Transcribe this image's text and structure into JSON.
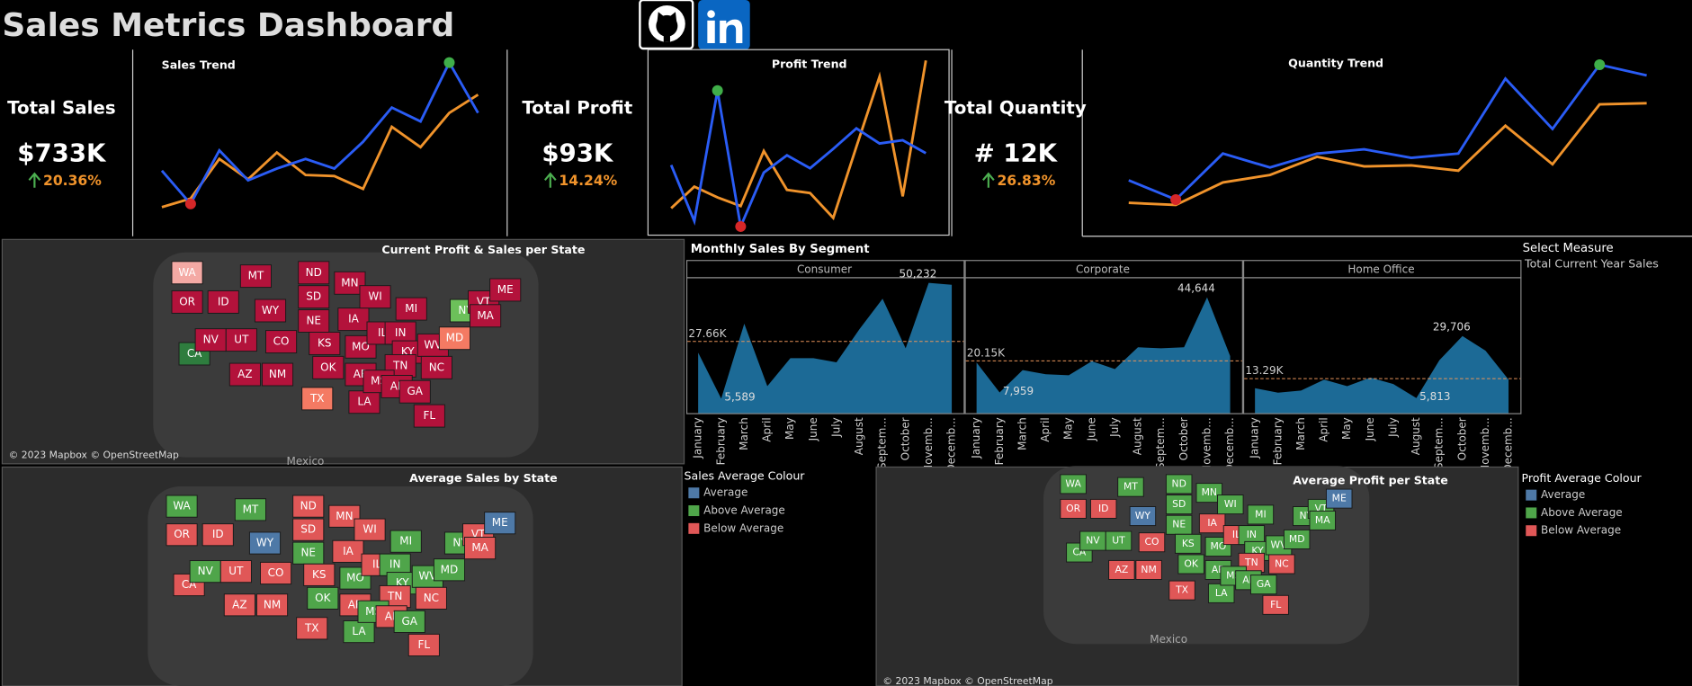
{
  "header": {
    "title": "Sales Metrics Dashboard"
  },
  "kpis": [
    {
      "label": "Total Sales",
      "value": "$733K",
      "change": "20.36%"
    },
    {
      "label": "Total Profit",
      "value": "$93K",
      "change": "14.24%"
    },
    {
      "label": "Total Quantity",
      "value": "# 12K",
      "change": "26.83%"
    }
  ],
  "chart_data": [
    {
      "type": "line",
      "title": "Sales Trend",
      "series": [
        {
          "color": "#2a5cf5",
          "values": [
            51,
            20,
            70,
            42,
            53,
            62,
            53,
            78,
            110,
            97,
            152,
            105
          ]
        },
        {
          "color": "#f0932b",
          "values": [
            17,
            25,
            62,
            43,
            68,
            47,
            46,
            34,
            92,
            73,
            105,
            122
          ]
        }
      ]
    },
    {
      "type": "line",
      "title": "Profit Trend",
      "series": [
        {
          "color": "#2a5cf5",
          "values": [
            6.7,
            1.5,
            13.6,
            1.0,
            6.0,
            7.6,
            6.4,
            8.2,
            10.1,
            8.7,
            9.0,
            7.8
          ]
        },
        {
          "color": "#f0932b",
          "values": [
            2.7,
            4.7,
            3.7,
            2.9,
            8.0,
            4.4,
            4.1,
            1.8,
            8.4,
            14.9,
            3.8,
            16.4
          ]
        }
      ]
    },
    {
      "type": "line",
      "title": "Quantity Trend",
      "series": [
        {
          "color": "#2a5cf5",
          "values": [
            1040,
            680,
            1540,
            1280,
            1540,
            1620,
            1460,
            1540,
            2940,
            2000,
            3200,
            3000
          ]
        },
        {
          "color": "#f0932b",
          "values": [
            620,
            580,
            1000,
            1140,
            1480,
            1300,
            1320,
            1220,
            2060,
            1340,
            2460,
            2480
          ]
        }
      ]
    },
    {
      "type": "area",
      "title": "Monthly Sales By Segment",
      "categories": [
        "January",
        "February",
        "March",
        "April",
        "May",
        "June",
        "July",
        "August",
        "Septem...",
        "October",
        "Novemb...",
        "Decemb..."
      ],
      "ylim": [
        0,
        52000
      ],
      "series": [
        {
          "name": "Consumer",
          "color": "#1c6a96",
          "values": [
            23300,
            5589,
            34500,
            10400,
            21200,
            21200,
            19600,
            32400,
            44100,
            25000,
            50232,
            49500
          ],
          "value_labels": [
            null,
            "5,589",
            null,
            null,
            null,
            null,
            null,
            null,
            null,
            null,
            "50,232",
            null
          ],
          "average": 27660,
          "average_label": "27.66K"
        },
        {
          "name": "Corporate",
          "color": "#1c6a96",
          "values": [
            19500,
            7959,
            16600,
            15000,
            14600,
            20000,
            17000,
            25400,
            25000,
            25400,
            44644,
            22000
          ],
          "value_labels": [
            null,
            "7,959",
            null,
            null,
            null,
            null,
            null,
            null,
            null,
            null,
            "44,644",
            null
          ],
          "average": 20150,
          "average_label": "20.15K"
        },
        {
          "name": "Home Office",
          "color": "#1c6a96",
          "values": [
            9600,
            7900,
            8700,
            12900,
            10400,
            13700,
            11200,
            5813,
            20400,
            29706,
            24100,
            12900
          ],
          "value_labels": [
            null,
            null,
            null,
            null,
            null,
            null,
            null,
            "5,813",
            null,
            "29,706",
            null,
            null
          ],
          "average": 13290,
          "average_label": "13.29K"
        }
      ]
    }
  ],
  "measure": {
    "title": "Select Measure",
    "value": "Total Current Year Sales"
  },
  "legends": [
    {
      "title": "Sales Average Colour",
      "items": [
        {
          "label": "Average",
          "color": "#4e79a7"
        },
        {
          "label": "Above Average",
          "color": "#4fa54a"
        },
        {
          "label": "Below Average",
          "color": "#e05757"
        }
      ]
    },
    {
      "title": "Profit Average Colour",
      "items": [
        {
          "label": "Average",
          "color": "#4e79a7"
        },
        {
          "label": "Above Average",
          "color": "#4fa54a"
        },
        {
          "label": "Below Average",
          "color": "#e05757"
        }
      ]
    }
  ],
  "maps": [
    {
      "title": "Current Profit & Sales per State",
      "attribution": "© 2023 Mapbox © OpenStreetMap",
      "place": "Mexico",
      "states": [
        {
          "name": "WA",
          "color": "#f4a9a4"
        },
        {
          "name": "OR",
          "color": "#b3123b"
        },
        {
          "name": "CA",
          "color": "#2e7d3e"
        },
        {
          "name": "ID",
          "color": "#b3123b"
        },
        {
          "name": "NV",
          "color": "#b3123b"
        },
        {
          "name": "MT",
          "color": "#b3123b"
        },
        {
          "name": "WY",
          "color": "#b3123b"
        },
        {
          "name": "UT",
          "color": "#b3123b"
        },
        {
          "name": "AZ",
          "color": "#b3123b"
        },
        {
          "name": "CO",
          "color": "#b3123b"
        },
        {
          "name": "NM",
          "color": "#b3123b"
        },
        {
          "name": "ND",
          "color": "#b3123b"
        },
        {
          "name": "SD",
          "color": "#b3123b"
        },
        {
          "name": "NE",
          "color": "#b3123b"
        },
        {
          "name": "KS",
          "color": "#b3123b"
        },
        {
          "name": "OK",
          "color": "#b3123b"
        },
        {
          "name": "TX",
          "color": "#f47a63"
        },
        {
          "name": "MN",
          "color": "#b3123b"
        },
        {
          "name": "IA",
          "color": "#b3123b"
        },
        {
          "name": "MO",
          "color": "#b3123b"
        },
        {
          "name": "AR",
          "color": "#b3123b"
        },
        {
          "name": "LA",
          "color": "#b3123b"
        },
        {
          "name": "WI",
          "color": "#b3123b"
        },
        {
          "name": "IL",
          "color": "#b3123b"
        },
        {
          "name": "MI",
          "color": "#b3123b"
        },
        {
          "name": "IN",
          "color": "#b3123b"
        },
        {
          "name": "KY",
          "color": "#b3123b"
        },
        {
          "name": "TN",
          "color": "#b3123b"
        },
        {
          "name": "MS",
          "color": "#b3123b"
        },
        {
          "name": "AL",
          "color": "#b3123b"
        },
        {
          "name": "GA",
          "color": "#b3123b"
        },
        {
          "name": "FL",
          "color": "#b3123b"
        },
        {
          "name": "WV",
          "color": "#b3123b"
        },
        {
          "name": "NC",
          "color": "#b3123b"
        },
        {
          "name": "MD",
          "color": "#f47a63"
        },
        {
          "name": "NY",
          "color": "#6cc05a"
        },
        {
          "name": "VT",
          "color": "#b3123b"
        },
        {
          "name": "MA",
          "color": "#b3123b"
        },
        {
          "name": "ME",
          "color": "#b3123b"
        }
      ]
    },
    {
      "title": "Average Sales by State",
      "states": [
        {
          "name": "WA",
          "color": "#4fa54a"
        },
        {
          "name": "OR",
          "color": "#e05757"
        },
        {
          "name": "CA",
          "color": "#e05757"
        },
        {
          "name": "ID",
          "color": "#e05757"
        },
        {
          "name": "NV",
          "color": "#4fa54a"
        },
        {
          "name": "MT",
          "color": "#4fa54a"
        },
        {
          "name": "WY",
          "color": "#4e79a7"
        },
        {
          "name": "UT",
          "color": "#e05757"
        },
        {
          "name": "AZ",
          "color": "#e05757"
        },
        {
          "name": "CO",
          "color": "#e05757"
        },
        {
          "name": "NM",
          "color": "#e05757"
        },
        {
          "name": "ND",
          "color": "#e05757"
        },
        {
          "name": "SD",
          "color": "#e05757"
        },
        {
          "name": "NE",
          "color": "#4fa54a"
        },
        {
          "name": "KS",
          "color": "#e05757"
        },
        {
          "name": "OK",
          "color": "#4fa54a"
        },
        {
          "name": "TX",
          "color": "#e05757"
        },
        {
          "name": "MN",
          "color": "#e05757"
        },
        {
          "name": "IA",
          "color": "#e05757"
        },
        {
          "name": "MO",
          "color": "#4fa54a"
        },
        {
          "name": "AR",
          "color": "#e05757"
        },
        {
          "name": "LA",
          "color": "#4fa54a"
        },
        {
          "name": "WI",
          "color": "#e05757"
        },
        {
          "name": "IL",
          "color": "#e05757"
        },
        {
          "name": "MI",
          "color": "#4fa54a"
        },
        {
          "name": "IN",
          "color": "#4fa54a"
        },
        {
          "name": "KY",
          "color": "#4fa54a"
        },
        {
          "name": "TN",
          "color": "#e05757"
        },
        {
          "name": "MS",
          "color": "#4fa54a"
        },
        {
          "name": "AL",
          "color": "#e05757"
        },
        {
          "name": "GA",
          "color": "#4fa54a"
        },
        {
          "name": "FL",
          "color": "#e05757"
        },
        {
          "name": "WV",
          "color": "#4fa54a"
        },
        {
          "name": "NC",
          "color": "#e05757"
        },
        {
          "name": "MD",
          "color": "#4fa54a"
        },
        {
          "name": "NY",
          "color": "#4fa54a"
        },
        {
          "name": "VT",
          "color": "#e05757"
        },
        {
          "name": "MA",
          "color": "#e05757"
        },
        {
          "name": "ME",
          "color": "#4e79a7"
        }
      ]
    },
    {
      "title": "Average Profit per State",
      "attribution": "© 2023 Mapbox © OpenStreetMap",
      "place": "Mexico",
      "states": [
        {
          "name": "WA",
          "color": "#4fa54a"
        },
        {
          "name": "OR",
          "color": "#e05757"
        },
        {
          "name": "CA",
          "color": "#4fa54a"
        },
        {
          "name": "ID",
          "color": "#e05757"
        },
        {
          "name": "NV",
          "color": "#4fa54a"
        },
        {
          "name": "MT",
          "color": "#4fa54a"
        },
        {
          "name": "WY",
          "color": "#4e79a7"
        },
        {
          "name": "UT",
          "color": "#4fa54a"
        },
        {
          "name": "AZ",
          "color": "#e05757"
        },
        {
          "name": "CO",
          "color": "#e05757"
        },
        {
          "name": "NM",
          "color": "#e05757"
        },
        {
          "name": "ND",
          "color": "#4fa54a"
        },
        {
          "name": "SD",
          "color": "#4fa54a"
        },
        {
          "name": "NE",
          "color": "#4fa54a"
        },
        {
          "name": "KS",
          "color": "#4fa54a"
        },
        {
          "name": "OK",
          "color": "#4fa54a"
        },
        {
          "name": "TX",
          "color": "#e05757"
        },
        {
          "name": "MN",
          "color": "#4fa54a"
        },
        {
          "name": "IA",
          "color": "#e05757"
        },
        {
          "name": "MO",
          "color": "#4fa54a"
        },
        {
          "name": "AR",
          "color": "#4fa54a"
        },
        {
          "name": "LA",
          "color": "#4fa54a"
        },
        {
          "name": "WI",
          "color": "#4fa54a"
        },
        {
          "name": "IL",
          "color": "#e05757"
        },
        {
          "name": "MI",
          "color": "#4fa54a"
        },
        {
          "name": "IN",
          "color": "#4fa54a"
        },
        {
          "name": "KY",
          "color": "#4fa54a"
        },
        {
          "name": "TN",
          "color": "#e05757"
        },
        {
          "name": "MS",
          "color": "#4fa54a"
        },
        {
          "name": "AL",
          "color": "#4fa54a"
        },
        {
          "name": "GA",
          "color": "#4fa54a"
        },
        {
          "name": "FL",
          "color": "#e05757"
        },
        {
          "name": "WV",
          "color": "#4fa54a"
        },
        {
          "name": "NC",
          "color": "#e05757"
        },
        {
          "name": "MD",
          "color": "#4fa54a"
        },
        {
          "name": "NY",
          "color": "#4fa54a"
        },
        {
          "name": "VT",
          "color": "#4fa54a"
        },
        {
          "name": "MA",
          "color": "#4fa54a"
        },
        {
          "name": "ME",
          "color": "#4e79a7"
        }
      ]
    }
  ]
}
